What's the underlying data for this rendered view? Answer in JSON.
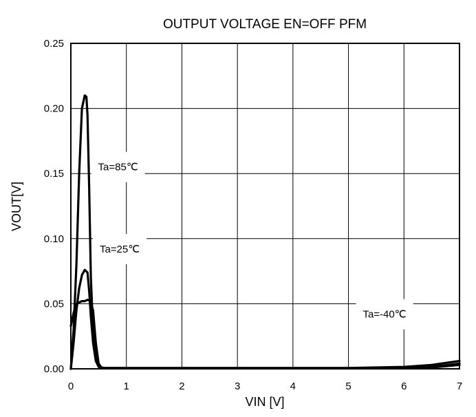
{
  "chart_data": {
    "type": "line",
    "title": "OUTPUT VOLTAGE EN=OFF PFM",
    "xlabel": "VIN [V]",
    "ylabel": "VOUT[V]",
    "xlim": [
      0,
      7
    ],
    "ylim": [
      0,
      0.25
    ],
    "xticks": [
      "0",
      "1",
      "2",
      "3",
      "4",
      "5",
      "6",
      "7"
    ],
    "yticks": [
      "0.00",
      "0.05",
      "0.10",
      "0.15",
      "0.20",
      "0.25"
    ],
    "grid": true,
    "series": [
      {
        "name": "Ta=85℃",
        "x": [
          0,
          0.05,
          0.1,
          0.15,
          0.2,
          0.25,
          0.28,
          0.3,
          0.33,
          0.36,
          0.4,
          0.45,
          0.5,
          0.55,
          0.6,
          1,
          2,
          3,
          4,
          5,
          6,
          6.5,
          7
        ],
        "y": [
          0,
          0.03,
          0.08,
          0.15,
          0.2,
          0.21,
          0.209,
          0.195,
          0.14,
          0.07,
          0.03,
          0.008,
          0.002,
          0.001,
          0.0007,
          0.0007,
          0.0007,
          0.0007,
          0.0007,
          0.0007,
          0.0015,
          0.003,
          0.006
        ]
      },
      {
        "name": "Ta=25℃",
        "x": [
          0,
          0.05,
          0.1,
          0.15,
          0.2,
          0.25,
          0.3,
          0.33,
          0.36,
          0.4,
          0.45,
          0.5,
          0.55,
          0.6,
          1,
          2,
          3,
          4,
          5,
          6,
          6.5,
          7
        ],
        "y": [
          0,
          0.02,
          0.045,
          0.062,
          0.072,
          0.076,
          0.074,
          0.06,
          0.04,
          0.02,
          0.006,
          0.0015,
          0.0008,
          0.0006,
          0.0005,
          0.0005,
          0.0005,
          0.0005,
          0.0005,
          0.0005,
          0.001,
          0.003
        ]
      },
      {
        "name": "Ta=-40℃",
        "x": [
          0,
          0.05,
          0.1,
          0.15,
          0.2,
          0.25,
          0.3,
          0.35,
          0.4,
          0.45,
          0.5,
          0.55,
          0.6,
          1,
          2,
          3,
          4,
          5,
          6,
          6.5,
          7
        ],
        "y": [
          0.033,
          0.043,
          0.05,
          0.051,
          0.052,
          0.052,
          0.053,
          0.052,
          0.045,
          0.02,
          0.004,
          0.001,
          0.0004,
          0.0004,
          0.0004,
          0.0004,
          0.0004,
          0.0004,
          0.0004,
          0.0015,
          0.004
        ]
      }
    ],
    "annotations": [
      {
        "text": "Ta=85℃",
        "x": 0.85,
        "y": 0.155
      },
      {
        "text": "Ta=25℃",
        "x": 0.88,
        "y": 0.092
      },
      {
        "text": "Ta=-40℃",
        "x": 5.65,
        "y": 0.042
      }
    ]
  }
}
